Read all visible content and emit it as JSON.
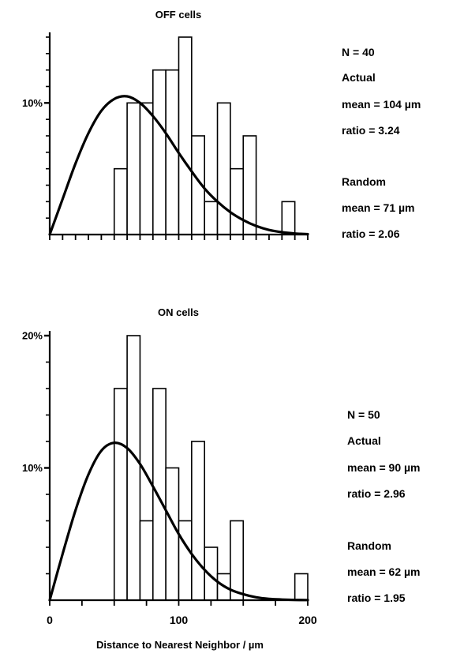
{
  "chart_data": [
    {
      "type": "bar",
      "title": "OFF cells",
      "xlabel": "",
      "ylabel": "",
      "bin_width": 10,
      "xlim": [
        0,
        200
      ],
      "ylim": [
        0,
        15
      ],
      "x_tick_step": 10,
      "y_tick_step": 1.25,
      "y_tick_labels": [
        {
          "value": 10,
          "label": "10%"
        }
      ],
      "bars": [
        {
          "x": 50,
          "value": 5
        },
        {
          "x": 60,
          "value": 10
        },
        {
          "x": 70,
          "value": 10
        },
        {
          "x": 80,
          "value": 12.5
        },
        {
          "x": 90,
          "value": 12.5
        },
        {
          "x": 100,
          "value": 15
        },
        {
          "x": 110,
          "value": 7.5
        },
        {
          "x": 120,
          "value": 2.5
        },
        {
          "x": 130,
          "value": 10
        },
        {
          "x": 140,
          "value": 5
        },
        {
          "x": 150,
          "value": 7.5
        },
        {
          "x": 180,
          "value": 2.5
        }
      ],
      "curve": {
        "name": "Random",
        "x": [
          0,
          10,
          20,
          30,
          40,
          50,
          60,
          70,
          80,
          90,
          100,
          110,
          120,
          130,
          140,
          150,
          160,
          170,
          180,
          190,
          200
        ],
        "y": [
          0,
          2.7,
          5.4,
          7.7,
          9.4,
          10.3,
          10.5,
          10.0,
          9.0,
          7.7,
          6.2,
          4.8,
          3.5,
          2.5,
          1.7,
          1.1,
          0.65,
          0.35,
          0.18,
          0.08,
          0.03
        ]
      },
      "stats": {
        "n": "N = 40",
        "actual_label": "Actual",
        "actual_mean": "mean = 104 µm",
        "actual_ratio": "ratio = 3.24",
        "random_label": "Random",
        "random_mean": "mean = 71 µm",
        "random_ratio": "ratio = 2.06"
      }
    },
    {
      "type": "bar",
      "title": "ON cells",
      "xlabel": "Distance to Nearest Neighbor / µm",
      "ylabel": "",
      "bin_width": 10,
      "xlim": [
        0,
        200
      ],
      "ylim": [
        0,
        20
      ],
      "x_tick_step": 25,
      "x_tick_labels": [
        {
          "value": 0,
          "label": "0"
        },
        {
          "value": 100,
          "label": "100"
        },
        {
          "value": 200,
          "label": "200"
        }
      ],
      "y_tick_step": 2,
      "y_tick_labels": [
        {
          "value": 10,
          "label": "10%"
        },
        {
          "value": 20,
          "label": "20%"
        }
      ],
      "bars": [
        {
          "x": 50,
          "value": 16
        },
        {
          "x": 60,
          "value": 20
        },
        {
          "x": 70,
          "value": 6
        },
        {
          "x": 80,
          "value": 16
        },
        {
          "x": 90,
          "value": 10
        },
        {
          "x": 100,
          "value": 6
        },
        {
          "x": 110,
          "value": 12
        },
        {
          "x": 120,
          "value": 4
        },
        {
          "x": 130,
          "value": 2
        },
        {
          "x": 140,
          "value": 6
        },
        {
          "x": 190,
          "value": 2
        }
      ],
      "curve": {
        "name": "Random",
        "x": [
          0,
          10,
          20,
          30,
          40,
          50,
          60,
          70,
          80,
          90,
          100,
          110,
          120,
          130,
          140,
          150,
          160,
          170,
          180,
          190,
          200
        ],
        "y": [
          0,
          3.5,
          6.8,
          9.5,
          11.3,
          11.9,
          11.5,
          10.3,
          8.6,
          6.8,
          5.0,
          3.5,
          2.3,
          1.4,
          0.8,
          0.45,
          0.22,
          0.1,
          0.05,
          0.02,
          0.01
        ]
      },
      "stats": {
        "n": "N = 50",
        "actual_label": "Actual",
        "actual_mean": "mean = 90 µm",
        "actual_ratio": "ratio = 2.96",
        "random_label": "Random",
        "random_mean": "mean = 62 µm",
        "random_ratio": "ratio = 1.95"
      }
    }
  ]
}
